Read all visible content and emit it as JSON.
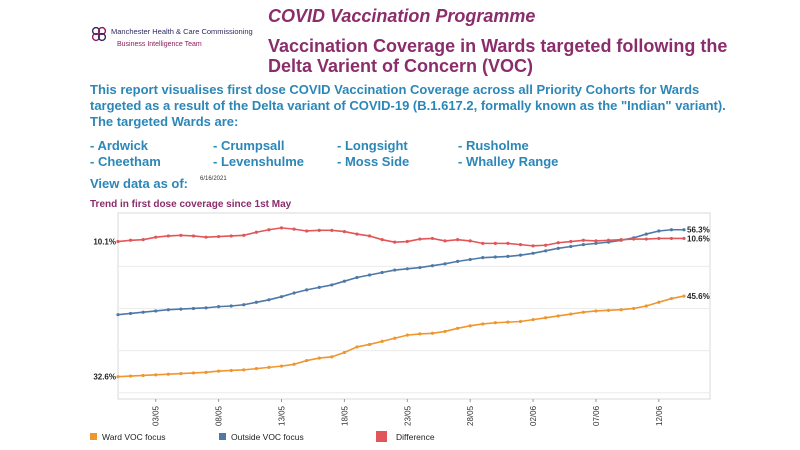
{
  "logo": {
    "org": "Manchester Health & Care Commissioning",
    "team": "Business Intelligence Team",
    "icon": "quatrefoil-logo-icon"
  },
  "header": {
    "programme_title": "COVID Vaccination Programme",
    "report_title": "Vaccination Coverage in Wards targeted following the Delta Varient of Concern (VOC)"
  },
  "intro": {
    "text": "This report visualises first dose COVID Vaccination Coverage across all Priority Cohorts for Wards targeted as a result of the Delta variant of COVID-19 (B.1.617.2, formally known as the \"Indian\" variant). The targeted Wards are:"
  },
  "wards": [
    "- Ardwick",
    "- Crumpsall",
    "- Longsight",
    "- Rusholme",
    "- Cheetham",
    "- Levenshulme",
    "- Moss Side",
    "- Whalley Range"
  ],
  "data_as_of": {
    "label": "View data as of:",
    "date": "6/16/2021"
  },
  "colors": {
    "title": "#8b2d6b",
    "text": "#2b87b8",
    "ward": "#f0962e",
    "outside": "#4e79a7",
    "difference": "#e15759"
  },
  "chart_data": {
    "type": "line",
    "title": "Trend in first dose coverage since 1st May",
    "x": [
      "30/04",
      "01/05",
      "02/05",
      "03/05",
      "04/05",
      "05/05",
      "06/05",
      "07/05",
      "08/05",
      "09/05",
      "10/05",
      "11/05",
      "12/05",
      "13/05",
      "14/05",
      "15/05",
      "16/05",
      "17/05",
      "18/05",
      "19/05",
      "20/05",
      "21/05",
      "22/05",
      "23/05",
      "24/05",
      "25/05",
      "26/05",
      "27/05",
      "28/05",
      "29/05",
      "30/05",
      "31/05",
      "01/06",
      "02/06",
      "03/06",
      "04/06",
      "05/06",
      "06/06",
      "07/06",
      "08/06",
      "09/06",
      "10/06",
      "11/06",
      "12/06",
      "13/06",
      "14/06"
    ],
    "x_tick_labels": [
      "03/05",
      "08/05",
      "13/05",
      "18/05",
      "23/05",
      "28/05",
      "02/06",
      "07/06",
      "12/06"
    ],
    "ylim": [
      29,
      59
    ],
    "series": [
      {
        "name": "Ward VOC focus",
        "color": "#f0962e",
        "values": [
          32.6,
          32.7,
          32.8,
          32.9,
          33.0,
          33.1,
          33.2,
          33.3,
          33.5,
          33.6,
          33.7,
          33.9,
          34.1,
          34.3,
          34.6,
          35.2,
          35.6,
          35.8,
          36.5,
          37.4,
          37.8,
          38.3,
          38.8,
          39.3,
          39.5,
          39.6,
          39.9,
          40.4,
          40.8,
          41.1,
          41.3,
          41.4,
          41.5,
          41.8,
          42.1,
          42.4,
          42.7,
          43.0,
          43.2,
          43.3,
          43.4,
          43.6,
          44.0,
          44.6,
          45.2,
          45.6
        ],
        "start_label": "32.6%",
        "end_label": "45.6%"
      },
      {
        "name": "Outside VOC focus",
        "color": "#4e79a7",
        "values": [
          42.6,
          42.8,
          43.0,
          43.2,
          43.4,
          43.5,
          43.6,
          43.7,
          43.9,
          44.0,
          44.2,
          44.6,
          45.0,
          45.5,
          46.1,
          46.6,
          47.0,
          47.4,
          48.0,
          48.6,
          49.0,
          49.4,
          49.8,
          50.0,
          50.2,
          50.5,
          50.8,
          51.2,
          51.5,
          51.8,
          51.9,
          52.0,
          52.2,
          52.5,
          52.9,
          53.3,
          53.6,
          53.9,
          54.1,
          54.3,
          54.6,
          55.0,
          55.6,
          56.1,
          56.3,
          56.3
        ],
        "end_label": "56.3%"
      },
      {
        "name": "Difference",
        "color": "#e15759",
        "values": [
          10.1,
          10.3,
          10.4,
          10.8,
          11.0,
          11.1,
          11.0,
          10.8,
          10.9,
          11.0,
          11.1,
          11.6,
          12.0,
          12.3,
          12.1,
          11.8,
          11.9,
          11.9,
          11.7,
          11.3,
          11.0,
          10.4,
          10.0,
          10.1,
          10.5,
          10.6,
          10.2,
          10.4,
          10.2,
          9.8,
          9.8,
          9.8,
          9.6,
          9.4,
          9.5,
          9.9,
          10.1,
          10.3,
          10.2,
          10.3,
          10.4,
          10.5,
          10.5,
          10.6,
          10.6,
          10.6
        ],
        "start_label": "10.1%",
        "end_label": "10.6%"
      }
    ],
    "legend_placement": "bottom",
    "grid": true
  }
}
